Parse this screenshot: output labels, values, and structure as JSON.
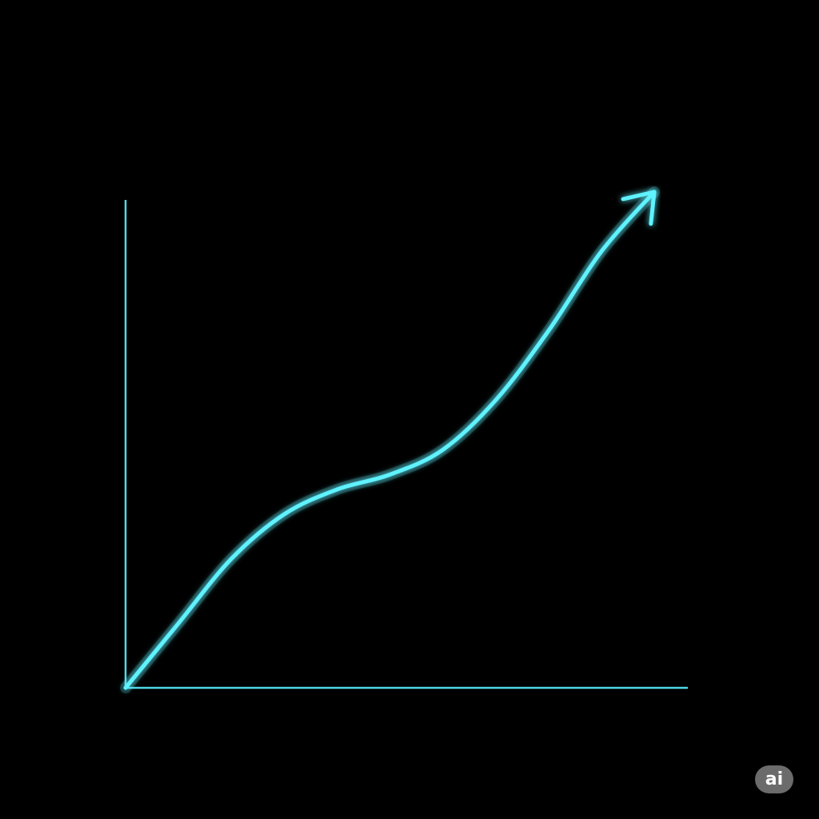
{
  "chart_data": {
    "type": "line",
    "title": "",
    "xlabel": "",
    "ylabel": "",
    "x": [
      0,
      0.1,
      0.2,
      0.3,
      0.4,
      0.5,
      0.6,
      0.7,
      0.8,
      0.9,
      1.0
    ],
    "series": [
      {
        "values": [
          0,
          0.13,
          0.26,
          0.35,
          0.4,
          0.43,
          0.48,
          0.58,
          0.72,
          0.88,
          1.0
        ]
      }
    ],
    "xlim": [
      0,
      1.05
    ],
    "ylim": [
      0,
      1.0
    ],
    "grid": false,
    "legend": "none",
    "end_marker": "arrow",
    "colors": {
      "background": "#000000",
      "axis": "#4fd8e6",
      "line": "#5ff2ff"
    }
  },
  "badge": {
    "text": "ai",
    "color": "#6b6b6b"
  }
}
